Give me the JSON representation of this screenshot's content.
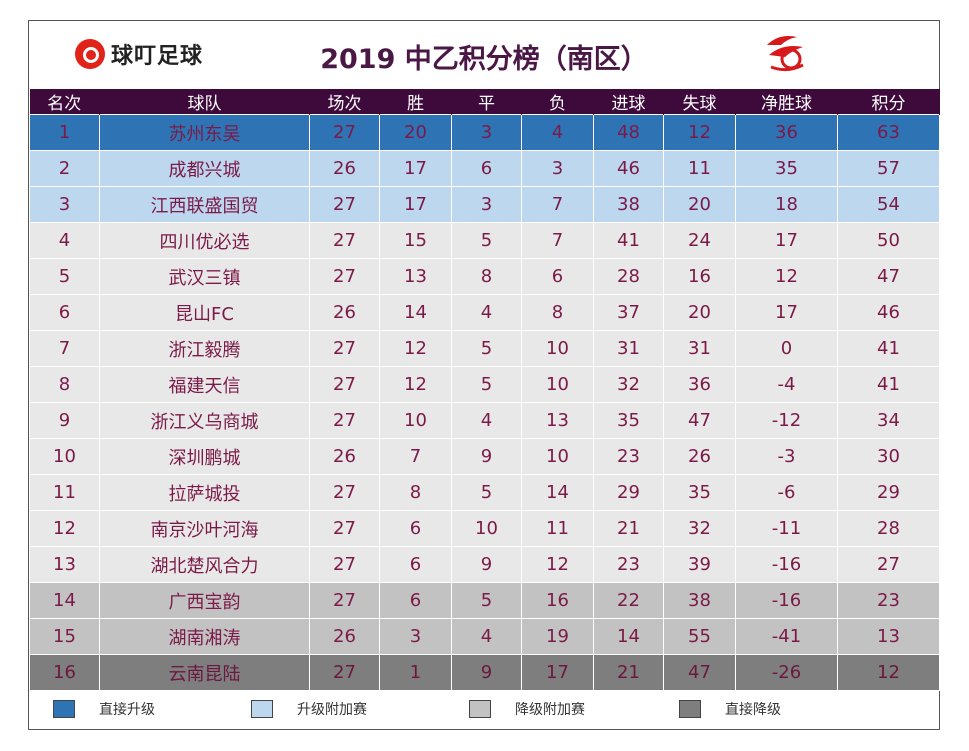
{
  "brand": "球叮足球",
  "title": "2019 中乙积分榜（南区）",
  "columns": [
    "名次",
    "球队",
    "场次",
    "胜",
    "平",
    "负",
    "进球",
    "失球",
    "净胜球",
    "积分"
  ],
  "rows": [
    {
      "zone": "promo",
      "cells": [
        "1",
        "苏州东吴",
        "27",
        "20",
        "3",
        "4",
        "48",
        "12",
        "36",
        "63"
      ]
    },
    {
      "zone": "promo-play",
      "cells": [
        "2",
        "成都兴城",
        "26",
        "17",
        "6",
        "3",
        "46",
        "11",
        "35",
        "57"
      ]
    },
    {
      "zone": "promo-play",
      "cells": [
        "3",
        "江西联盛国贸",
        "27",
        "17",
        "3",
        "7",
        "38",
        "20",
        "18",
        "54"
      ]
    },
    {
      "zone": "mid",
      "cells": [
        "4",
        "四川优必选",
        "27",
        "15",
        "5",
        "7",
        "41",
        "24",
        "17",
        "50"
      ]
    },
    {
      "zone": "mid",
      "cells": [
        "5",
        "武汉三镇",
        "27",
        "13",
        "8",
        "6",
        "28",
        "16",
        "12",
        "47"
      ]
    },
    {
      "zone": "mid",
      "cells": [
        "6",
        "昆山FC",
        "26",
        "14",
        "4",
        "8",
        "37",
        "20",
        "17",
        "46"
      ]
    },
    {
      "zone": "mid",
      "cells": [
        "7",
        "浙江毅腾",
        "27",
        "12",
        "5",
        "10",
        "31",
        "31",
        "0",
        "41"
      ]
    },
    {
      "zone": "mid",
      "cells": [
        "8",
        "福建天信",
        "27",
        "12",
        "5",
        "10",
        "32",
        "36",
        "-4",
        "41"
      ]
    },
    {
      "zone": "mid",
      "cells": [
        "9",
        "浙江义乌商城",
        "27",
        "10",
        "4",
        "13",
        "35",
        "47",
        "-12",
        "34"
      ]
    },
    {
      "zone": "mid",
      "cells": [
        "10",
        "深圳鹏城",
        "26",
        "7",
        "9",
        "10",
        "23",
        "26",
        "-3",
        "30"
      ]
    },
    {
      "zone": "mid",
      "cells": [
        "11",
        "拉萨城投",
        "27",
        "8",
        "5",
        "14",
        "29",
        "35",
        "-6",
        "29"
      ]
    },
    {
      "zone": "mid",
      "cells": [
        "12",
        "南京沙叶河海",
        "27",
        "6",
        "10",
        "11",
        "21",
        "32",
        "-11",
        "28"
      ]
    },
    {
      "zone": "mid",
      "cells": [
        "13",
        "湖北楚风合力",
        "27",
        "6",
        "9",
        "12",
        "23",
        "39",
        "-16",
        "27"
      ]
    },
    {
      "zone": "rel-play",
      "cells": [
        "14",
        "广西宝韵",
        "27",
        "6",
        "5",
        "16",
        "22",
        "38",
        "-16",
        "23"
      ]
    },
    {
      "zone": "rel-play",
      "cells": [
        "15",
        "湖南湘涛",
        "26",
        "3",
        "4",
        "19",
        "14",
        "55",
        "-41",
        "13"
      ]
    },
    {
      "zone": "rel",
      "cells": [
        "16",
        "云南昆陆",
        "27",
        "1",
        "9",
        "17",
        "21",
        "47",
        "-26",
        "12"
      ]
    }
  ],
  "legend": [
    {
      "label": "直接升级",
      "color": "#2e74b5"
    },
    {
      "label": "升级附加赛",
      "color": "#bdd7ee"
    },
    {
      "label": "降级附加赛",
      "color": "#c2c2c2"
    },
    {
      "label": "直接降级",
      "color": "#7e7e7e"
    }
  ]
}
